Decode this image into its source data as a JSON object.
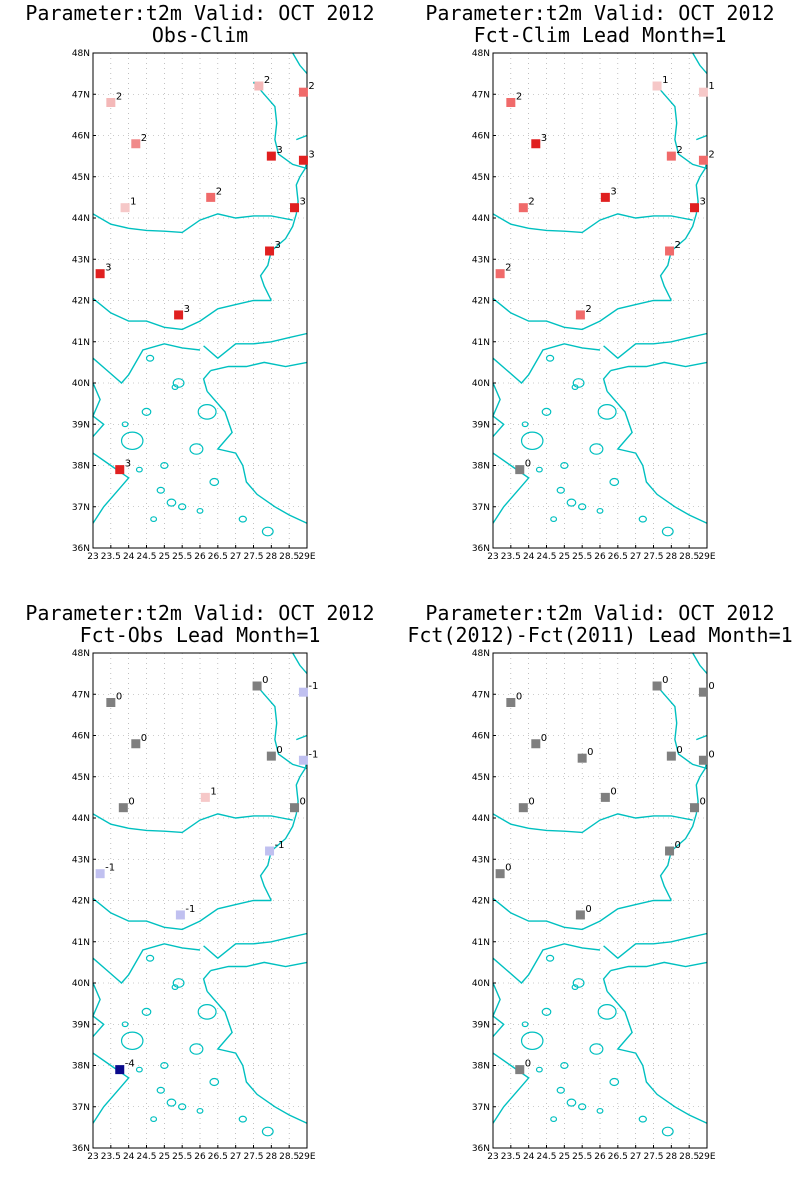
{
  "panels": [
    {
      "title_line1": "Parameter:t2m Valid: OCT 2012",
      "title_line2": "Obs-Clim",
      "stations": [
        {
          "lon": 23.5,
          "lat": 46.8,
          "label": "2",
          "color": "#f4b8b8"
        },
        {
          "lon": 24.2,
          "lat": 45.8,
          "label": "2",
          "color": "#f08a8a"
        },
        {
          "lon": 23.9,
          "lat": 44.25,
          "label": "1",
          "color": "#f6c8c8"
        },
        {
          "lon": 23.2,
          "lat": 42.65,
          "label": "3",
          "color": "#e02020"
        },
        {
          "lon": 25.4,
          "lat": 41.65,
          "label": "3",
          "color": "#e02020"
        },
        {
          "lon": 26.3,
          "lat": 44.5,
          "label": "2",
          "color": "#f06a6a"
        },
        {
          "lon": 27.65,
          "lat": 47.2,
          "label": "2",
          "color": "#f4b8b8"
        },
        {
          "lon": 28.9,
          "lat": 47.05,
          "label": "2",
          "color": "#f06a6a"
        },
        {
          "lon": 28.0,
          "lat": 45.5,
          "label": "3",
          "color": "#e02020"
        },
        {
          "lon": 28.9,
          "lat": 45.4,
          "label": "3",
          "color": "#e02020"
        },
        {
          "lon": 28.65,
          "lat": 44.25,
          "label": "3",
          "color": "#e02020"
        },
        {
          "lon": 27.95,
          "lat": 43.2,
          "label": "3",
          "color": "#e02020"
        },
        {
          "lon": 23.75,
          "lat": 37.9,
          "label": "3",
          "color": "#e02020"
        }
      ]
    },
    {
      "title_line1": "Parameter:t2m Valid: OCT 2012",
      "title_line2": "Fct-Clim Lead Month=1",
      "stations": [
        {
          "lon": 23.5,
          "lat": 46.8,
          "label": "2",
          "color": "#f06a6a"
        },
        {
          "lon": 24.2,
          "lat": 45.8,
          "label": "3",
          "color": "#e02020"
        },
        {
          "lon": 23.85,
          "lat": 44.25,
          "label": "2",
          "color": "#f06a6a"
        },
        {
          "lon": 23.2,
          "lat": 42.65,
          "label": "2",
          "color": "#f06a6a"
        },
        {
          "lon": 25.45,
          "lat": 41.65,
          "label": "2",
          "color": "#f06a6a"
        },
        {
          "lon": 26.15,
          "lat": 44.5,
          "label": "3",
          "color": "#e02020"
        },
        {
          "lon": 27.6,
          "lat": 47.2,
          "label": "1",
          "color": "#f6c8c8"
        },
        {
          "lon": 28.9,
          "lat": 47.05,
          "label": "1",
          "color": "#f6c8c8"
        },
        {
          "lon": 28.0,
          "lat": 45.5,
          "label": "2",
          "color": "#f06a6a"
        },
        {
          "lon": 28.9,
          "lat": 45.4,
          "label": "2",
          "color": "#f06a6a"
        },
        {
          "lon": 28.65,
          "lat": 44.25,
          "label": "3",
          "color": "#e02020"
        },
        {
          "lon": 27.95,
          "lat": 43.2,
          "label": "2",
          "color": "#f06a6a"
        },
        {
          "lon": 23.75,
          "lat": 37.9,
          "label": "0",
          "color": "#7f7f7f"
        }
      ]
    },
    {
      "title_line1": "Parameter:t2m Valid: OCT 2012",
      "title_line2": "Fct-Obs Lead Month=1",
      "stations": [
        {
          "lon": 23.5,
          "lat": 46.8,
          "label": "0",
          "color": "#7f7f7f"
        },
        {
          "lon": 24.2,
          "lat": 45.8,
          "label": "0",
          "color": "#7f7f7f"
        },
        {
          "lon": 23.85,
          "lat": 44.25,
          "label": "0",
          "color": "#7f7f7f"
        },
        {
          "lon": 23.2,
          "lat": 42.65,
          "label": "-1",
          "color": "#c0c0f0"
        },
        {
          "lon": 25.45,
          "lat": 41.65,
          "label": "-1",
          "color": "#c0c0f0"
        },
        {
          "lon": 26.15,
          "lat": 44.5,
          "label": "1",
          "color": "#f6c8c8"
        },
        {
          "lon": 27.6,
          "lat": 47.2,
          "label": "0",
          "color": "#7f7f7f"
        },
        {
          "lon": 28.9,
          "lat": 47.05,
          "label": "-1",
          "color": "#c0c0f0"
        },
        {
          "lon": 28.0,
          "lat": 45.5,
          "label": "0",
          "color": "#7f7f7f"
        },
        {
          "lon": 28.9,
          "lat": 45.4,
          "label": "-1",
          "color": "#c0c0f0"
        },
        {
          "lon": 28.65,
          "lat": 44.25,
          "label": "0",
          "color": "#7f7f7f"
        },
        {
          "lon": 27.95,
          "lat": 43.2,
          "label": "-1",
          "color": "#c0c0f0"
        },
        {
          "lon": 23.75,
          "lat": 37.9,
          "label": "-4",
          "color": "#0a0a8c"
        }
      ]
    },
    {
      "title_line1": "Parameter:t2m Valid: OCT 2012",
      "title_line2": "Fct(2012)-Fct(2011) Lead Month=1",
      "stations": [
        {
          "lon": 23.5,
          "lat": 46.8,
          "label": "0",
          "color": "#7f7f7f"
        },
        {
          "lon": 24.2,
          "lat": 45.8,
          "label": "0",
          "color": "#7f7f7f"
        },
        {
          "lon": 23.85,
          "lat": 44.25,
          "label": "0",
          "color": "#7f7f7f"
        },
        {
          "lon": 23.2,
          "lat": 42.65,
          "label": "0",
          "color": "#7f7f7f"
        },
        {
          "lon": 25.45,
          "lat": 41.65,
          "label": "0",
          "color": "#7f7f7f"
        },
        {
          "lon": 25.5,
          "lat": 45.45,
          "label": "0",
          "color": "#7f7f7f"
        },
        {
          "lon": 26.15,
          "lat": 44.5,
          "label": "0",
          "color": "#7f7f7f"
        },
        {
          "lon": 27.6,
          "lat": 47.2,
          "label": "0",
          "color": "#7f7f7f"
        },
        {
          "lon": 28.9,
          "lat": 47.05,
          "label": "0",
          "color": "#7f7f7f"
        },
        {
          "lon": 28.0,
          "lat": 45.5,
          "label": "0",
          "color": "#7f7f7f"
        },
        {
          "lon": 28.9,
          "lat": 45.4,
          "label": "0",
          "color": "#7f7f7f"
        },
        {
          "lon": 28.65,
          "lat": 44.25,
          "label": "0",
          "color": "#7f7f7f"
        },
        {
          "lon": 27.95,
          "lat": 43.2,
          "label": "0",
          "color": "#7f7f7f"
        },
        {
          "lon": 23.75,
          "lat": 37.9,
          "label": "0",
          "color": "#7f7f7f"
        }
      ]
    }
  ],
  "map": {
    "lat_labels": [
      "36N",
      "37N",
      "38N",
      "39N",
      "40N",
      "41N",
      "42N",
      "43N",
      "44N",
      "45N",
      "46N",
      "47N",
      "48N"
    ],
    "lon_labels": [
      "23",
      "23.5",
      "24",
      "24.5",
      "25",
      "25.5",
      "26",
      "26.5",
      "27",
      "27.5",
      "28",
      "28.5",
      "29E"
    ],
    "lat_range": [
      36,
      48
    ],
    "lon_range": [
      23,
      29
    ],
    "coastline_color": "#00c0c0",
    "grid_color": "#999999"
  }
}
